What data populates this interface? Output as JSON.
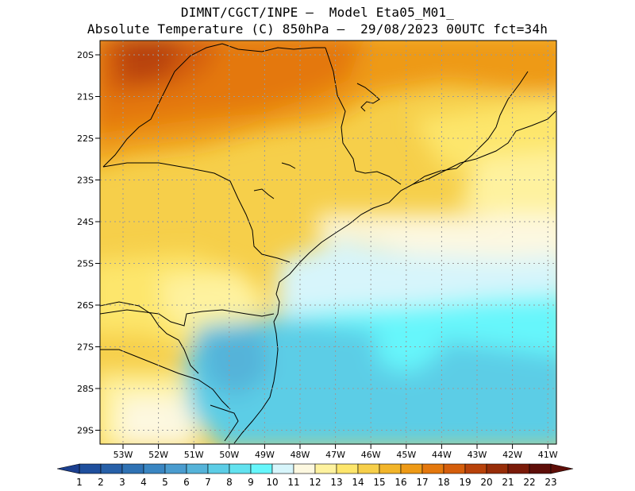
{
  "header": {
    "line1": "DIMNT/CGCT/INPE –  Model Eta05_M01_",
    "line2": "Absolute Temperature (C) 850hPa –  29/08/2023 00UTC fct=34h"
  },
  "map": {
    "lat_labels": [
      "20S",
      "21S",
      "22S",
      "23S",
      "24S",
      "25S",
      "26S",
      "27S",
      "28S",
      "29S"
    ],
    "lon_labels": [
      "53W",
      "52W",
      "51W",
      "50W",
      "49W",
      "48W",
      "47W",
      "46W",
      "45W",
      "44W",
      "43W",
      "42W",
      "41W"
    ]
  },
  "colorbar": {
    "labels": [
      "1",
      "2",
      "3",
      "4",
      "5",
      "6",
      "7",
      "8",
      "9",
      "10",
      "11",
      "12",
      "13",
      "14",
      "15",
      "16",
      "17",
      "18",
      "19",
      "20",
      "21",
      "22",
      "23"
    ],
    "colors": [
      "#1b3f8f",
      "#1f4f9d",
      "#2760a8",
      "#2f72b4",
      "#3a86c2",
      "#4a9ccf",
      "#55b3d9",
      "#5ccde6",
      "#62e2ef",
      "#66f6fb",
      "#d7f5fb",
      "#fdf8e0",
      "#fef29f",
      "#fde66c",
      "#f6cf4a",
      "#f2b52a",
      "#ee9a16",
      "#e4780d",
      "#d55e0b",
      "#b8420a",
      "#972d08",
      "#7a1a08",
      "#5e0e08"
    ]
  }
}
